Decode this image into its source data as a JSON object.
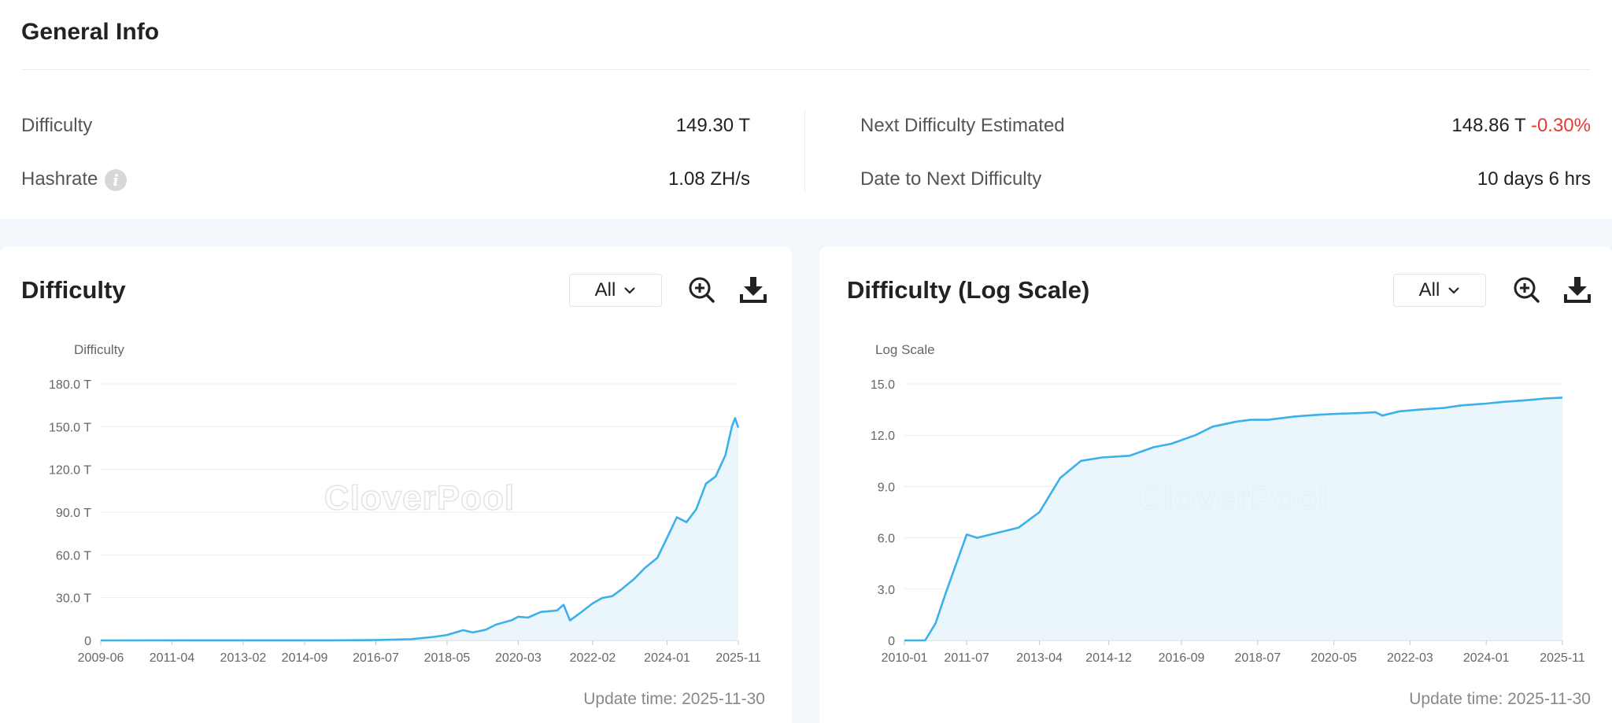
{
  "general_info": {
    "title": "General Info",
    "difficulty_label": "Difficulty",
    "difficulty_value": "149.30 T",
    "hashrate_label": "Hashrate",
    "hashrate_value": "1.08 ZH/s",
    "next_difficulty_label": "Next Difficulty Estimated",
    "next_difficulty_value": "148.86 T",
    "next_difficulty_change": "-0.30%",
    "date_to_next_label": "Date to Next Difficulty",
    "date_to_next_value": "10 days 6 hrs"
  },
  "colors": {
    "line": "#3bb0ea",
    "area": "#e6f3fb",
    "negative": "#e53935",
    "watermark": "#e4e4e4"
  },
  "cards": [
    {
      "title": "Difficulty",
      "range_selected": "All",
      "update_time": "Update time: 2025-11-30",
      "zoom_icon": "zoom-in-icon",
      "download_icon": "download-icon"
    },
    {
      "title": "Difficulty (Log Scale)",
      "range_selected": "All",
      "update_time": "Update time: 2025-11-30",
      "zoom_icon": "zoom-in-icon",
      "download_icon": "download-icon"
    }
  ],
  "chart_data": [
    {
      "type": "area",
      "title": "Difficulty",
      "ylabel": "Difficulty",
      "watermark": "CloverPool",
      "x_ticks": [
        "2009-06",
        "2011-04",
        "2013-02",
        "2014-09",
        "2016-07",
        "2018-05",
        "2020-03",
        "2022-02",
        "2024-01",
        "2025-11"
      ],
      "y_ticks": [
        "0",
        "30.0 T",
        "60.0 T",
        "90.0 T",
        "120.0 T",
        "150.0 T",
        "180.0 T"
      ],
      "ylim": [
        0,
        180
      ],
      "unit": "T",
      "grid": true,
      "series": [
        {
          "x": [
            "2009-06",
            "2015-06",
            "2016-07",
            "2017-06",
            "2018-01",
            "2018-05",
            "2018-10",
            "2019-01",
            "2019-05",
            "2019-08",
            "2020-01",
            "2020-03",
            "2020-06",
            "2020-10",
            "2021-03",
            "2021-05",
            "2021-07",
            "2021-10",
            "2022-02",
            "2022-05",
            "2022-08",
            "2022-11",
            "2023-03",
            "2023-06",
            "2023-10",
            "2024-01",
            "2024-04",
            "2024-07",
            "2024-10",
            "2025-01",
            "2025-04",
            "2025-07",
            "2025-09",
            "2025-10",
            "2025-11"
          ],
          "y": [
            0,
            0.05,
            0.2,
            0.9,
            2.5,
            3.8,
            7.2,
            5.6,
            7.5,
            11.0,
            14.2,
            16.6,
            16.0,
            20.0,
            21.0,
            25.0,
            14.0,
            19.0,
            26.0,
            29.8,
            31.0,
            36.0,
            43.5,
            50.6,
            58.0,
            72.0,
            86.4,
            83.0,
            92.0,
            110.0,
            115.0,
            130.0,
            150.0,
            156.0,
            149.3
          ]
        }
      ]
    },
    {
      "type": "area",
      "title": "Difficulty (Log Scale)",
      "ylabel": "Log Scale",
      "watermark": "CloverPool",
      "x_ticks": [
        "2010-01",
        "2011-07",
        "2013-04",
        "2014-12",
        "2016-09",
        "2018-07",
        "2020-05",
        "2022-03",
        "2024-01",
        "2025-11"
      ],
      "y_ticks": [
        "0",
        "3.0",
        "6.0",
        "9.0",
        "12.0",
        "15.0"
      ],
      "ylim": [
        0,
        15
      ],
      "grid": true,
      "series": [
        {
          "x": [
            "2009-06",
            "2010-07",
            "2010-10",
            "2011-01",
            "2011-04",
            "2011-07",
            "2011-10",
            "2012-04",
            "2012-10",
            "2013-04",
            "2013-10",
            "2014-04",
            "2014-10",
            "2015-06",
            "2016-01",
            "2016-06",
            "2017-01",
            "2017-06",
            "2018-01",
            "2018-05",
            "2018-10",
            "2019-06",
            "2020-01",
            "2020-06",
            "2021-01",
            "2021-05",
            "2021-07",
            "2021-12",
            "2022-06",
            "2023-01",
            "2023-06",
            "2024-01",
            "2024-06",
            "2025-01",
            "2025-06",
            "2025-11"
          ],
          "y": [
            0,
            0,
            1.0,
            2.8,
            4.5,
            6.2,
            6.0,
            6.3,
            6.6,
            7.5,
            9.5,
            10.5,
            10.7,
            10.8,
            11.3,
            11.5,
            12.0,
            12.5,
            12.8,
            12.9,
            12.9,
            13.1,
            13.2,
            13.25,
            13.3,
            13.35,
            13.15,
            13.4,
            13.5,
            13.6,
            13.75,
            13.85,
            13.95,
            14.05,
            14.15,
            14.2
          ]
        }
      ]
    }
  ]
}
